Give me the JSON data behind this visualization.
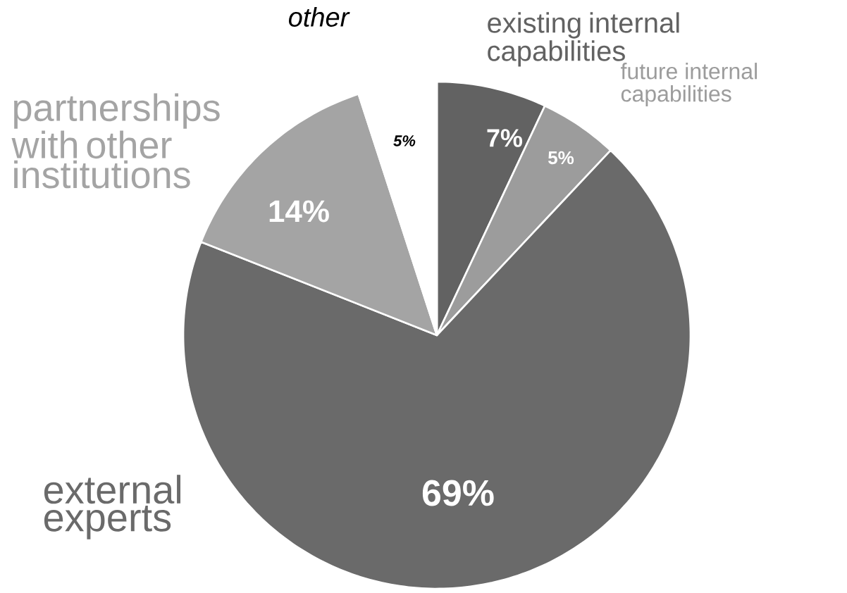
{
  "chart_data": {
    "type": "pie",
    "categories": [
      "existing internal capabilities",
      "future internal capabilities",
      "external experts",
      "partnerships with other institutions",
      "other"
    ],
    "values": [
      7,
      5,
      69,
      14,
      5
    ],
    "colors": [
      "#626262",
      "#9c9c9c",
      "#6a6a6a",
      "#a4a4a4",
      "#ffffff"
    ],
    "value_labels": [
      "7%",
      "5%",
      "69%",
      "14%",
      "5%"
    ]
  }
}
